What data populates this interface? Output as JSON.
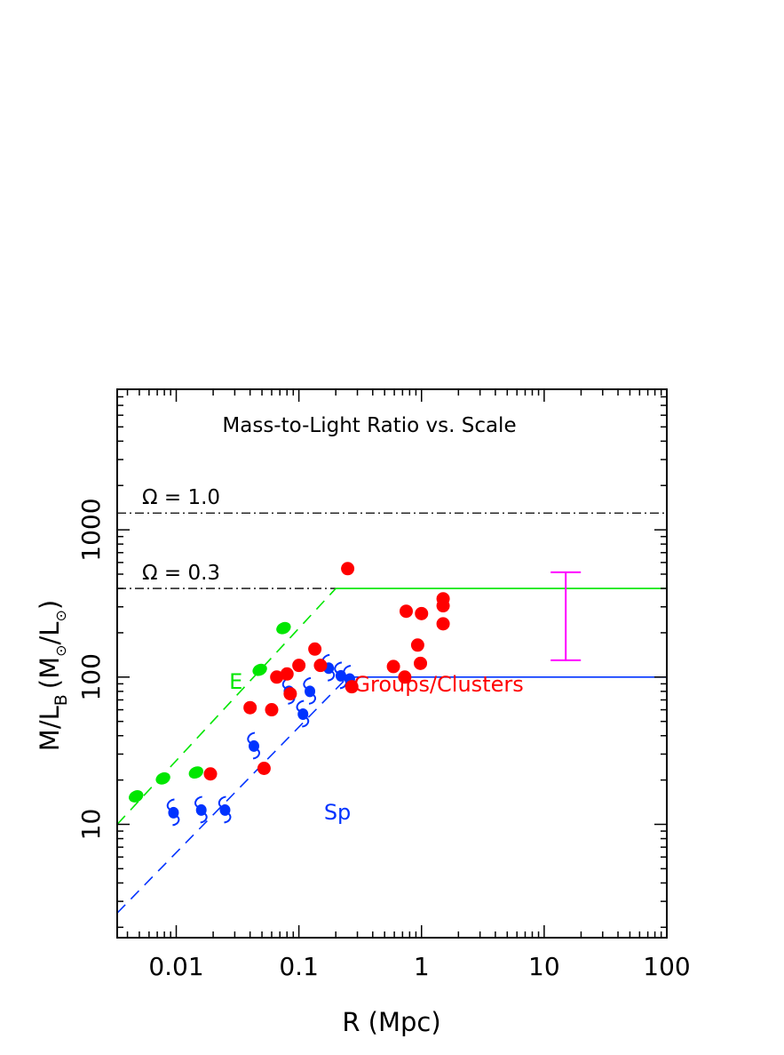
{
  "chart_data": {
    "type": "scatter",
    "title": "Mass-to-Light Ratio vs. Scale",
    "xlabel": "R (Mpc)",
    "ylabel_main": "M/L",
    "ylabel_sub": "B",
    "ylabel_paren": "(M",
    "ylabel_sun1": "⊙",
    "ylabel_slash": "/L",
    "ylabel_sun2": "⊙",
    "ylabel_close": ")",
    "x_scale": "log",
    "y_scale": "log",
    "xlim": [
      0.0033,
      100
    ],
    "ylim": [
      1.7,
      9000
    ],
    "x_ticks": [
      {
        "v": 0.01,
        "label": "0.01"
      },
      {
        "v": 0.1,
        "label": "0.1"
      },
      {
        "v": 1,
        "label": "1"
      },
      {
        "v": 10,
        "label": "10"
      },
      {
        "v": 100,
        "label": "100"
      }
    ],
    "y_ticks": [
      {
        "v": 10,
        "label": "10"
      },
      {
        "v": 100,
        "label": "100"
      },
      {
        "v": 1000,
        "label": "1000"
      }
    ],
    "reference_lines": [
      {
        "label": "Ω = 1.0",
        "y": 1300,
        "x_from": 0.0033,
        "x_to": 100,
        "style": "dashdot",
        "color": "#000000"
      },
      {
        "label": "Ω = 0.3",
        "y": 400,
        "x_from": 0.0033,
        "x_to": 0.2,
        "style": "dashdot",
        "color": "#000000"
      }
    ],
    "series": [
      {
        "name": "E",
        "color": "#00e600",
        "marker": "ellipse",
        "points": [
          [
            0.0047,
            15.5
          ],
          [
            0.0078,
            20.5
          ],
          [
            0.0145,
            22.5
          ],
          [
            0.048,
            112
          ],
          [
            0.075,
            215
          ]
        ],
        "trend_dashed": {
          "x": [
            0.0033,
            0.2
          ],
          "y": [
            10,
            400
          ]
        },
        "plateau": {
          "x": [
            0.2,
            100
          ],
          "y": 400
        }
      },
      {
        "name": "Sp",
        "color": "#0033ff",
        "marker": "spiral",
        "points": [
          [
            0.0095,
            12
          ],
          [
            0.016,
            12.5
          ],
          [
            0.025,
            12.5
          ],
          [
            0.043,
            34
          ],
          [
            0.083,
            80
          ],
          [
            0.108,
            56
          ],
          [
            0.123,
            80
          ],
          [
            0.175,
            115
          ],
          [
            0.22,
            102
          ],
          [
            0.26,
            97
          ]
        ],
        "trend_dashed": {
          "x": [
            0.0033,
            0.25
          ],
          "y": [
            2.5,
            100
          ]
        },
        "plateau": {
          "x": [
            0.25,
            100
          ],
          "y": 100
        }
      },
      {
        "name": "Groups/Clusters",
        "color": "#ff0000",
        "marker": "circle",
        "points": [
          [
            0.019,
            22
          ],
          [
            0.04,
            62
          ],
          [
            0.052,
            24
          ],
          [
            0.06,
            60
          ],
          [
            0.066,
            100
          ],
          [
            0.08,
            105
          ],
          [
            0.085,
            77
          ],
          [
            0.1,
            120
          ],
          [
            0.135,
            155
          ],
          [
            0.15,
            120
          ],
          [
            0.25,
            545
          ],
          [
            0.27,
            86
          ],
          [
            0.59,
            118
          ],
          [
            0.73,
            100
          ],
          [
            0.75,
            280
          ],
          [
            0.93,
            165
          ],
          [
            0.98,
            124
          ],
          [
            1.0,
            270
          ],
          [
            1.5,
            340
          ],
          [
            1.5,
            305
          ],
          [
            1.5,
            230
          ]
        ]
      }
    ],
    "error_bar": {
      "x": 15,
      "y_low": 130,
      "y_high": 515,
      "color": "#ff00ff"
    },
    "annotations": [
      {
        "text": "E",
        "x": 0.027,
        "y": 83,
        "color": "#00e600"
      },
      {
        "text": "Sp",
        "x": 0.16,
        "y": 10.8,
        "color": "#0033ff"
      },
      {
        "text": "Groups/Clusters",
        "x": 0.28,
        "y": 80,
        "color": "#ff0000"
      }
    ]
  }
}
